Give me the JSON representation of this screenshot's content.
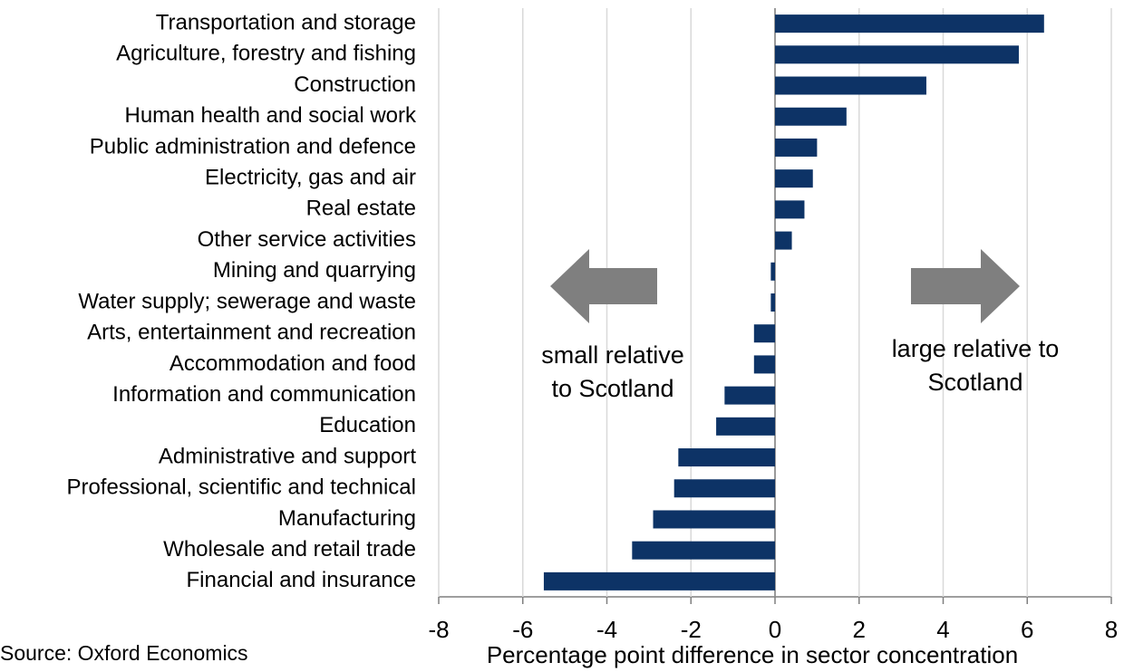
{
  "chart_data": {
    "type": "barh",
    "categories": [
      "Transportation and storage",
      "Agriculture, forestry and fishing",
      "Construction",
      "Human health and social work",
      "Public administration and defence",
      "Electricity, gas and air",
      "Real estate",
      "Other service activities",
      "Mining and quarrying",
      "Water supply; sewerage and waste",
      "Arts, entertainment and recreation",
      "Accommodation and food",
      "Information and communication",
      "Education",
      "Administrative and support",
      "Professional, scientific and technical",
      "Manufacturing",
      "Wholesale and retail trade",
      "Financial and insurance"
    ],
    "values": [
      6.4,
      5.8,
      3.6,
      1.7,
      1.0,
      0.9,
      0.7,
      0.4,
      -0.1,
      -0.1,
      -0.5,
      -0.5,
      -1.2,
      -1.4,
      -2.3,
      -2.4,
      -2.9,
      -3.4,
      -5.5
    ],
    "color": "#0d3366",
    "xlim": [
      -8,
      8
    ],
    "xticks": [
      -8,
      -6,
      -4,
      -2,
      0,
      2,
      4,
      6,
      8
    ],
    "grid": true,
    "xlabel": "Percentage point difference in sector concentration",
    "annotations": [
      [
        "small relative",
        "to Scotland"
      ],
      [
        "large relative to",
        "Scotland"
      ]
    ],
    "source": "Source: Oxford Economics"
  }
}
